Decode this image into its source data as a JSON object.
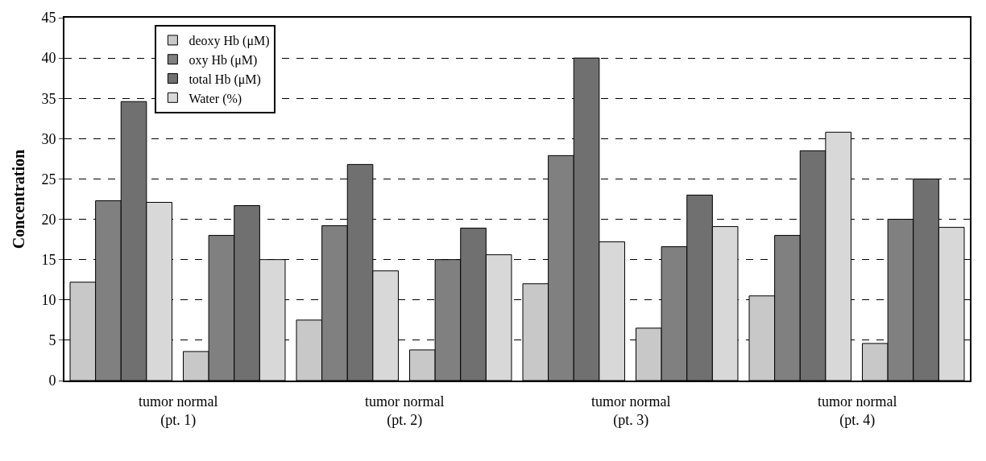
{
  "chart_data": {
    "type": "bar",
    "ylabel": "Concentration",
    "categories": [
      null,
      null,
      null,
      null,
      null,
      null,
      null,
      null
    ],
    "series": [
      {
        "name": "deoxy Hb (μM)",
        "color": "#c8c8c8",
        "values": [
          12.2,
          3.6,
          7.5,
          3.8,
          12.0,
          6.5,
          10.5,
          4.6
        ]
      },
      {
        "name": "oxy Hb (μM)",
        "color": "#808080",
        "values": [
          22.3,
          18.0,
          19.2,
          15.0,
          27.9,
          16.6,
          18.0,
          20.0
        ]
      },
      {
        "name": "total Hb (μM)",
        "color": "#707070",
        "values": [
          34.6,
          21.7,
          26.8,
          18.9,
          40.0,
          23.0,
          28.5,
          25.0
        ]
      },
      {
        "name": "Water (%)",
        "color": "#d8d8d8",
        "values": [
          22.1,
          15.0,
          13.6,
          15.6,
          17.2,
          19.1,
          30.8,
          19.0
        ]
      }
    ],
    "annotations": [
      "tumor normal\n(pt. 1)",
      "tumor normal\n(pt. 2)",
      "tumor normal\n(pt. 3)",
      "tumor normal\n(pt. 4)"
    ],
    "ylim": [
      0,
      45
    ],
    "yticks": [
      0,
      5,
      10,
      15,
      20,
      25,
      30,
      35,
      40,
      45
    ],
    "grid": "y",
    "legend": "top left"
  }
}
